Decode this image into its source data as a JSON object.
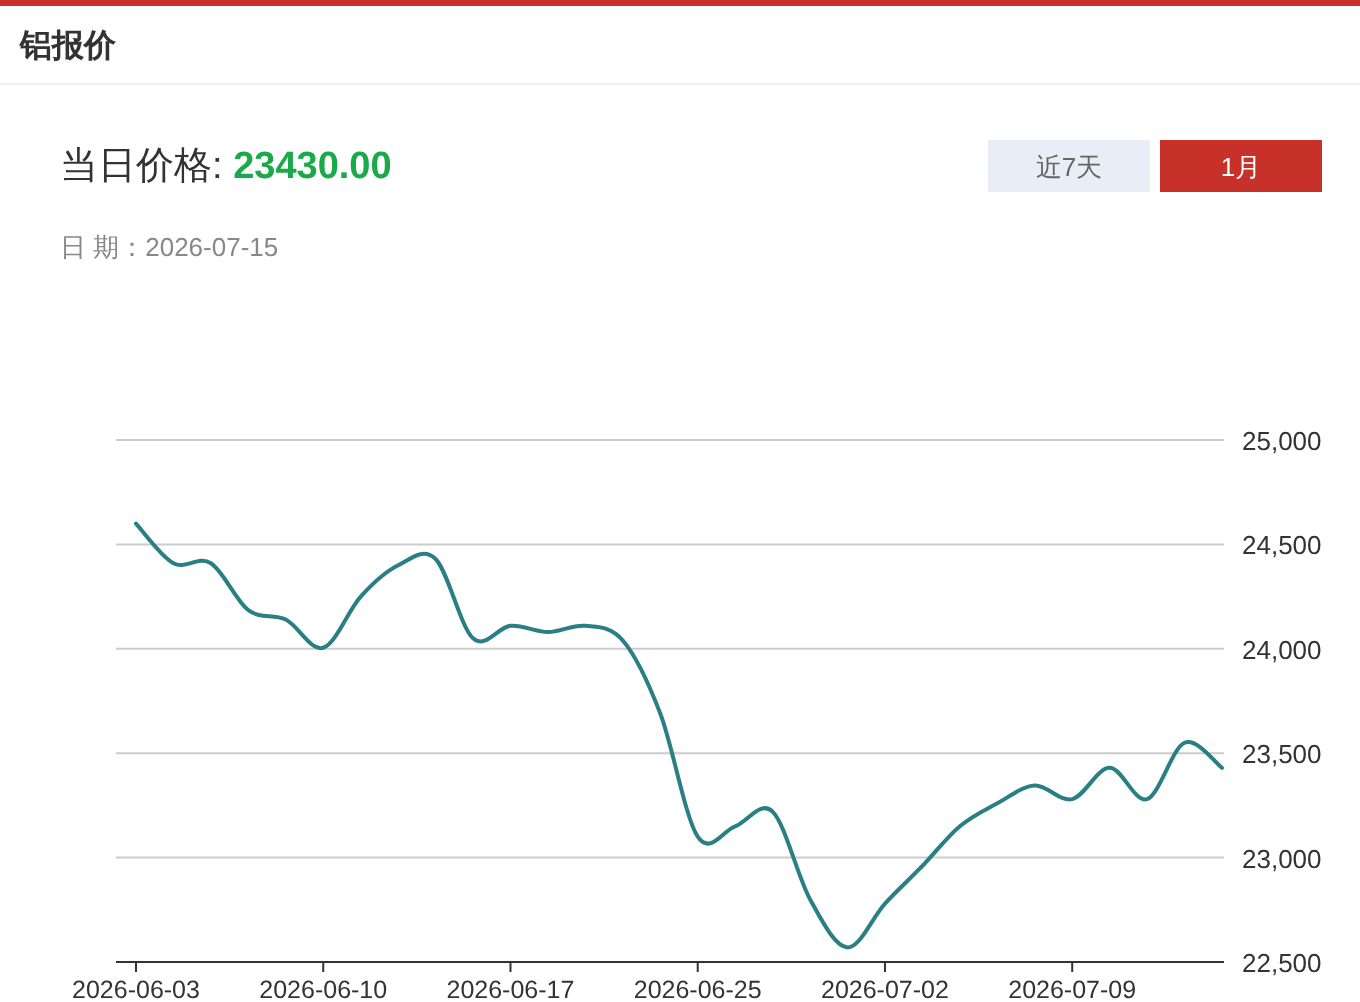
{
  "chart_data": {
    "type": "line",
    "title": "铝报价",
    "subtitle": "当日价格: 23430.00",
    "annotations": [
      "日 期：2026-07-15",
      "近7天",
      "1月"
    ],
    "categories": [
      "2026-06-03",
      null,
      null,
      null,
      null,
      "2026-06-10",
      null,
      null,
      null,
      null,
      "2026-06-17",
      null,
      null,
      null,
      null,
      "2026-06-25",
      null,
      null,
      null,
      null,
      "2026-07-02",
      null,
      null,
      null,
      null,
      "2026-07-09",
      null,
      null,
      null,
      null
    ],
    "series": [
      {
        "color": "#2a7f84",
        "values": [
          24600,
          24410,
          24410,
          24185,
          24140,
          24005,
          24250,
          24400,
          24430,
          24050,
          24110,
          24080,
          24110,
          24040,
          23690,
          23100,
          23150,
          23220,
          22800,
          22570,
          22780,
          22960,
          23150,
          23260,
          23345,
          23280,
          23430,
          23280,
          23550,
          23430
        ]
      }
    ],
    "ylim": [
      22500,
      25000
    ],
    "yticks": [
      {
        "value": 22500,
        "label": "22,500"
      },
      {
        "value": 23000,
        "label": "23,000"
      },
      {
        "value": 23500,
        "label": "23,500"
      },
      {
        "value": 24000,
        "label": "24,000"
      },
      {
        "value": 24500,
        "label": "24,500"
      },
      {
        "value": 25000,
        "label": "25,000"
      }
    ],
    "grid": "y",
    "marker": "none",
    "line_style": "solid"
  }
}
